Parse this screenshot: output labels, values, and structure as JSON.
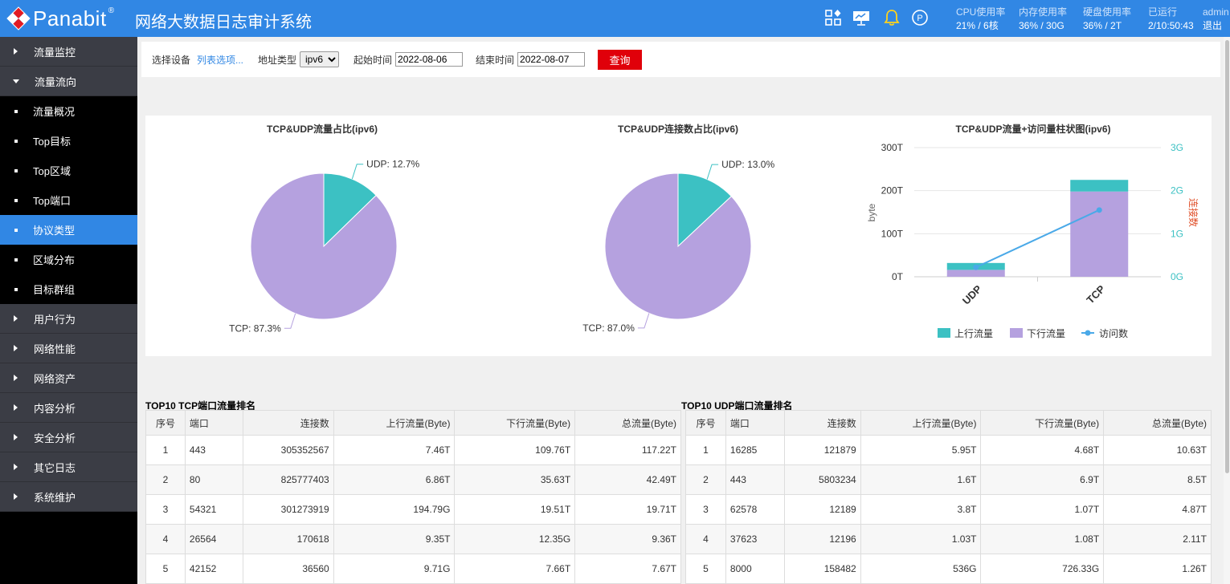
{
  "header": {
    "brand": "Panabit",
    "reg": "®",
    "system_title": "网络大数据日志审计系统",
    "icons": [
      "apps-icon",
      "monitor-icon",
      "bell-icon",
      "p-icon"
    ],
    "stats": [
      {
        "label": "CPU使用率",
        "value": "21% / 6核"
      },
      {
        "label": "内存使用率",
        "value": "36% / 30G"
      },
      {
        "label": "硬盘使用率",
        "value": "36% / 2T"
      },
      {
        "label": "已运行",
        "value": "2/10:50:43"
      }
    ],
    "user": "admin",
    "logout": "退出"
  },
  "sidebar": {
    "items": [
      {
        "label": "流量监控"
      },
      {
        "label": "流量流向"
      },
      {
        "label": "流量概况"
      },
      {
        "label": "Top目标"
      },
      {
        "label": "Top区域"
      },
      {
        "label": "Top端口"
      },
      {
        "label": "协议类型"
      },
      {
        "label": "区域分布"
      },
      {
        "label": "目标群组"
      },
      {
        "label": "用户行为"
      },
      {
        "label": "网络性能"
      },
      {
        "label": "网络资产"
      },
      {
        "label": "内容分析"
      },
      {
        "label": "安全分析"
      },
      {
        "label": "其它日志"
      },
      {
        "label": "系统维护"
      }
    ]
  },
  "filter": {
    "device_label": "选择设备",
    "device_link": "列表选项...",
    "addr_label": "地址类型",
    "addr_value": "ipv6",
    "start_label": "起始时间",
    "start_value": "2022-08-06",
    "end_label": "结束时间",
    "end_value": "2022-08-07",
    "query": "查询"
  },
  "charts": {
    "pie1_title": "TCP&UDP流量占比(ipv6)",
    "pie2_title": "TCP&UDP连接数占比(ipv6)",
    "bar_title": "TCP&UDP流量+访问量柱状图(ipv6)",
    "bar_left_axis": "byte",
    "bar_right_axis": "连接数",
    "legend": [
      "上行流量",
      "下行流量",
      "访问数"
    ]
  },
  "chart_data": [
    {
      "type": "pie",
      "title": "TCP&UDP流量占比(ipv6)",
      "labels": [
        "UDP",
        "TCP"
      ],
      "values": [
        12.7,
        87.3
      ],
      "label_text": [
        "UDP: 12.7%",
        "TCP: 87.3%"
      ],
      "colors": [
        "#3cc1c3",
        "#b5a1df"
      ]
    },
    {
      "type": "pie",
      "title": "TCP&UDP连接数占比(ipv6)",
      "labels": [
        "UDP",
        "TCP"
      ],
      "values": [
        13.0,
        87.0
      ],
      "label_text": [
        "UDP: 13.0%",
        "TCP: 87.0%"
      ],
      "colors": [
        "#3cc1c3",
        "#b5a1df"
      ]
    },
    {
      "type": "bar",
      "title": "TCP&UDP流量+访问量柱状图(ipv6)",
      "categories": [
        "UDP",
        "TCP"
      ],
      "ylabel": "byte",
      "y2label": "连接数",
      "yticks": [
        "0T",
        "100T",
        "200T",
        "300T"
      ],
      "y2ticks": [
        "0G",
        "1G",
        "2G",
        "3G"
      ],
      "ylim": [
        0,
        300
      ],
      "y2lim": [
        0,
        3
      ],
      "stacked": true,
      "series": [
        {
          "name": "下行流量",
          "values": [
            16,
            198
          ],
          "color": "#b5a1df"
        },
        {
          "name": "上行流量",
          "values": [
            16,
            27
          ],
          "color": "#3cc1c3"
        }
      ],
      "line": {
        "name": "访问数",
        "values": [
          0.22,
          1.55
        ],
        "color": "#4aa9e8"
      }
    }
  ],
  "tcp_table": {
    "title": "TOP10 TCP端口流量排名",
    "headers": [
      "序号",
      "端口",
      "连接数",
      "上行流量(Byte)",
      "下行流量(Byte)",
      "总流量(Byte)"
    ],
    "rows": [
      [
        "1",
        "443",
        "305352567",
        "7.46T",
        "109.76T",
        "117.22T"
      ],
      [
        "2",
        "80",
        "825777403",
        "6.86T",
        "35.63T",
        "42.49T"
      ],
      [
        "3",
        "54321",
        "301273919",
        "194.79G",
        "19.51T",
        "19.71T"
      ],
      [
        "4",
        "26564",
        "170618",
        "9.35T",
        "12.35G",
        "9.36T"
      ],
      [
        "5",
        "42152",
        "36560",
        "9.71G",
        "7.66T",
        "7.67T"
      ]
    ]
  },
  "udp_table": {
    "title": "TOP10 UDP端口流量排名",
    "headers": [
      "序号",
      "端口",
      "连接数",
      "上行流量(Byte)",
      "下行流量(Byte)",
      "总流量(Byte)"
    ],
    "rows": [
      [
        "1",
        "16285",
        "121879",
        "5.95T",
        "4.68T",
        "10.63T"
      ],
      [
        "2",
        "443",
        "5803234",
        "1.6T",
        "6.9T",
        "8.5T"
      ],
      [
        "3",
        "62578",
        "12189",
        "3.8T",
        "1.07T",
        "4.87T"
      ],
      [
        "4",
        "37623",
        "12196",
        "1.03T",
        "1.08T",
        "2.11T"
      ],
      [
        "5",
        "8000",
        "158482",
        "536G",
        "726.33G",
        "1.26T"
      ]
    ]
  }
}
